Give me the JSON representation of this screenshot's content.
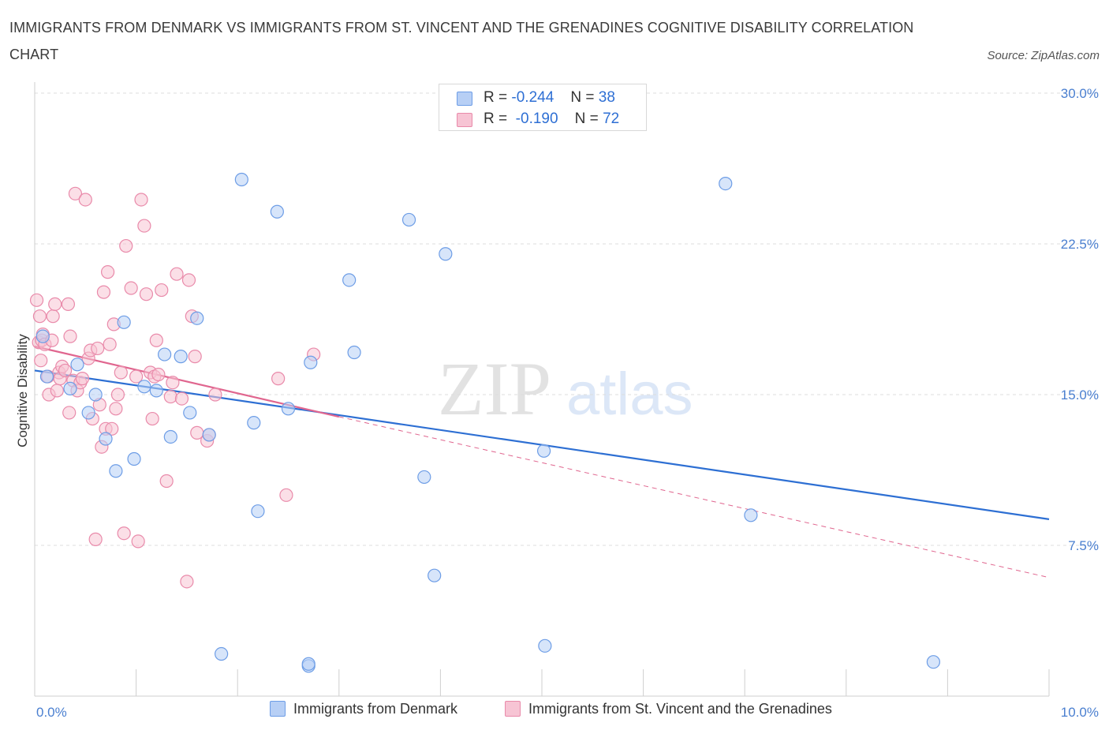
{
  "title": "IMMIGRANTS FROM DENMARK VS IMMIGRANTS FROM ST. VINCENT AND THE GRENADINES COGNITIVE DISABILITY CORRELATION CHART",
  "source": "Source: ZipAtlas.com",
  "watermark": {
    "zip": "ZIP",
    "atlas": "atlas"
  },
  "legend_top": {
    "rows": [
      {
        "r_label": "R =",
        "r_value": "-0.244",
        "n_label": "N =",
        "n_value": "38"
      },
      {
        "r_label": "R =",
        "r_value": "-0.190",
        "n_label": "N =",
        "n_value": "72"
      }
    ]
  },
  "colors": {
    "blue_fill": "#b7cff5",
    "blue_stroke": "#6d9de6",
    "blue_line": "#2d6fd3",
    "pink_fill": "#f7c4d4",
    "pink_stroke": "#e98aaa",
    "pink_line": "#e0668f",
    "tick_text": "#4a7fd0",
    "grid": "#dcdcdc"
  },
  "chart_data": {
    "type": "scatter",
    "title": "IMMIGRANTS FROM DENMARK VS IMMIGRANTS FROM ST. VINCENT AND THE GRENADINES COGNITIVE DISABILITY CORRELATION CHART",
    "xlabel": "",
    "ylabel": "Cognitive Disability",
    "xlim": [
      0,
      10
    ],
    "ylim": [
      0,
      30
    ],
    "x_tick_labels": [
      "0.0%",
      "10.0%"
    ],
    "y_ticks": [
      7.5,
      15.0,
      22.5,
      30.0
    ],
    "y_tick_labels": [
      "7.5%",
      "15.0%",
      "22.5%",
      "30.0%"
    ],
    "grid": true,
    "legend_position": "top-center",
    "series": [
      {
        "name": "Immigrants from Denmark",
        "color": "#6d9de6",
        "points": [
          [
            0.08,
            17.9
          ],
          [
            0.12,
            15.9
          ],
          [
            0.35,
            15.3
          ],
          [
            0.42,
            16.5
          ],
          [
            0.53,
            14.1
          ],
          [
            0.6,
            15.0
          ],
          [
            0.7,
            12.8
          ],
          [
            0.8,
            11.2
          ],
          [
            0.88,
            18.6
          ],
          [
            0.98,
            11.8
          ],
          [
            1.08,
            15.4
          ],
          [
            1.2,
            15.2
          ],
          [
            1.28,
            17.0
          ],
          [
            1.34,
            12.9
          ],
          [
            1.44,
            16.9
          ],
          [
            1.53,
            14.1
          ],
          [
            1.6,
            18.8
          ],
          [
            1.72,
            13.0
          ],
          [
            1.84,
            2.1
          ],
          [
            2.04,
            25.7
          ],
          [
            2.16,
            13.6
          ],
          [
            2.2,
            9.2
          ],
          [
            2.39,
            24.1
          ],
          [
            2.5,
            14.3
          ],
          [
            2.7,
            1.5
          ],
          [
            2.72,
            16.6
          ],
          [
            3.1,
            20.7
          ],
          [
            3.15,
            17.1
          ],
          [
            3.69,
            23.7
          ],
          [
            3.84,
            10.9
          ],
          [
            3.94,
            6.0
          ],
          [
            4.05,
            22.0
          ],
          [
            5.02,
            12.2
          ],
          [
            5.03,
            2.5
          ],
          [
            6.81,
            25.5
          ],
          [
            7.06,
            9.0
          ],
          [
            8.86,
            1.7
          ],
          [
            2.7,
            1.6
          ]
        ]
      },
      {
        "name": "Immigrants from St. Vincent and the Grenadines",
        "color": "#e98aaa",
        "points": [
          [
            0.02,
            19.7
          ],
          [
            0.04,
            17.6
          ],
          [
            0.05,
            18.9
          ],
          [
            0.06,
            16.7
          ],
          [
            0.07,
            17.7
          ],
          [
            0.08,
            18.0
          ],
          [
            0.1,
            17.5
          ],
          [
            0.13,
            15.9
          ],
          [
            0.14,
            15.0
          ],
          [
            0.17,
            17.7
          ],
          [
            0.18,
            18.9
          ],
          [
            0.2,
            19.5
          ],
          [
            0.22,
            15.2
          ],
          [
            0.24,
            16.1
          ],
          [
            0.25,
            15.8
          ],
          [
            0.27,
            16.4
          ],
          [
            0.3,
            16.2
          ],
          [
            0.33,
            19.5
          ],
          [
            0.34,
            14.1
          ],
          [
            0.35,
            17.9
          ],
          [
            0.38,
            15.7
          ],
          [
            0.4,
            25.0
          ],
          [
            0.42,
            15.2
          ],
          [
            0.45,
            15.6
          ],
          [
            0.47,
            15.8
          ],
          [
            0.5,
            24.7
          ],
          [
            0.53,
            16.8
          ],
          [
            0.55,
            17.2
          ],
          [
            0.57,
            13.8
          ],
          [
            0.6,
            7.8
          ],
          [
            0.62,
            17.3
          ],
          [
            0.64,
            14.5
          ],
          [
            0.66,
            12.4
          ],
          [
            0.68,
            20.1
          ],
          [
            0.7,
            13.3
          ],
          [
            0.72,
            21.1
          ],
          [
            0.74,
            17.5
          ],
          [
            0.76,
            13.3
          ],
          [
            0.78,
            18.5
          ],
          [
            0.8,
            14.3
          ],
          [
            0.82,
            15.0
          ],
          [
            0.85,
            16.1
          ],
          [
            0.88,
            8.1
          ],
          [
            0.9,
            22.4
          ],
          [
            0.95,
            20.3
          ],
          [
            1.0,
            15.9
          ],
          [
            1.02,
            7.7
          ],
          [
            1.05,
            24.7
          ],
          [
            1.08,
            23.4
          ],
          [
            1.1,
            20.0
          ],
          [
            1.14,
            16.1
          ],
          [
            1.16,
            13.8
          ],
          [
            1.18,
            15.9
          ],
          [
            1.2,
            17.7
          ],
          [
            1.25,
            20.2
          ],
          [
            1.3,
            10.7
          ],
          [
            1.34,
            14.9
          ],
          [
            1.36,
            15.6
          ],
          [
            1.4,
            21.0
          ],
          [
            1.45,
            14.8
          ],
          [
            1.5,
            5.7
          ],
          [
            1.52,
            20.7
          ],
          [
            1.55,
            18.9
          ],
          [
            1.58,
            16.9
          ],
          [
            1.6,
            13.1
          ],
          [
            1.7,
            12.7
          ],
          [
            1.72,
            13.0
          ],
          [
            1.78,
            15.0
          ],
          [
            2.4,
            15.8
          ],
          [
            2.48,
            10.0
          ],
          [
            2.75,
            17.0
          ],
          [
            1.22,
            16.0
          ]
        ]
      }
    ],
    "trend_lines": [
      {
        "series": "Immigrants from Denmark",
        "x": [
          0,
          10
        ],
        "y": [
          16.2,
          8.8
        ],
        "style": "solid"
      },
      {
        "series": "Immigrants from St. Vincent and the Grenadines",
        "x": [
          0,
          3.0
        ],
        "y": [
          17.4,
          13.9
        ],
        "style": "solid"
      },
      {
        "series": "Immigrants from St. Vincent and the Grenadines",
        "x": [
          3.0,
          10
        ],
        "y": [
          13.9,
          5.9
        ],
        "style": "dashed"
      }
    ]
  },
  "bottom_legend": [
    {
      "label": "Immigrants from Denmark"
    },
    {
      "label": "Immigrants from St. Vincent and the Grenadines"
    }
  ]
}
